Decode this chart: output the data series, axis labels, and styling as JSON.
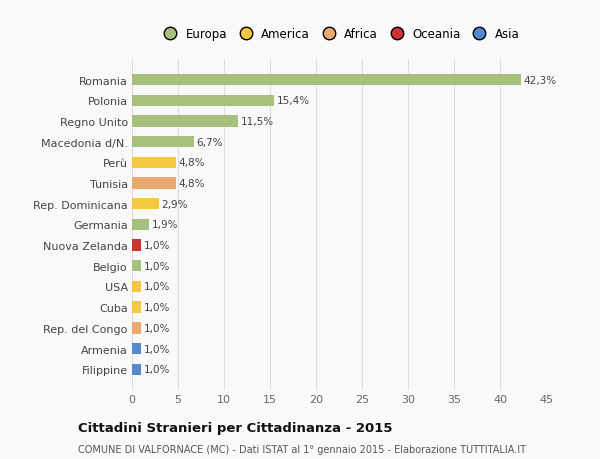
{
  "countries": [
    "Romania",
    "Polonia",
    "Regno Unito",
    "Macedonia d/N.",
    "Perù",
    "Tunisia",
    "Rep. Dominicana",
    "Germania",
    "Nuova Zelanda",
    "Belgio",
    "USA",
    "Cuba",
    "Rep. del Congo",
    "Armenia",
    "Filippine"
  ],
  "values": [
    42.3,
    15.4,
    11.5,
    6.7,
    4.8,
    4.8,
    2.9,
    1.9,
    1.0,
    1.0,
    1.0,
    1.0,
    1.0,
    1.0,
    1.0
  ],
  "labels": [
    "42,3%",
    "15,4%",
    "11,5%",
    "6,7%",
    "4,8%",
    "4,8%",
    "2,9%",
    "1,9%",
    "1,0%",
    "1,0%",
    "1,0%",
    "1,0%",
    "1,0%",
    "1,0%",
    "1,0%"
  ],
  "bar_colors": [
    "#a8c07e",
    "#a8c07e",
    "#a8c07e",
    "#a8c07e",
    "#f5c842",
    "#e8a86e",
    "#f5c842",
    "#a8c07e",
    "#cc3333",
    "#a8c07e",
    "#f5c842",
    "#f5c842",
    "#e8a86e",
    "#5588cc",
    "#5588cc"
  ],
  "continent_colors": {
    "Europa": "#a8c07e",
    "America": "#f5c842",
    "Africa": "#e8a86e",
    "Oceania": "#cc3333",
    "Asia": "#5588cc"
  },
  "xlim": [
    0,
    45
  ],
  "xticks": [
    0,
    5,
    10,
    15,
    20,
    25,
    30,
    35,
    40,
    45
  ],
  "title": "Cittadini Stranieri per Cittadinanza - 2015",
  "subtitle": "COMUNE DI VALFORNACE (MC) - Dati ISTAT al 1° gennaio 2015 - Elaborazione TUTTITALIA.IT",
  "background_color": "#f9f9f9",
  "grid_color": "#dddddd",
  "bar_height": 0.55
}
